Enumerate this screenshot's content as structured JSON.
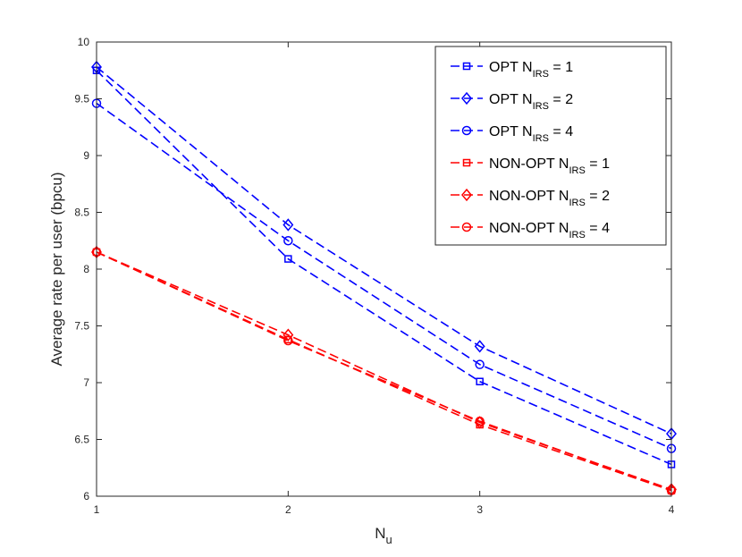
{
  "chart_data": {
    "type": "line",
    "xlabel": {
      "main": "N",
      "sub": "u"
    },
    "ylabel": "Average rate per user (bpcu)",
    "x": [
      1,
      2,
      3,
      4
    ],
    "xticks": [
      "1",
      "2",
      "3",
      "4"
    ],
    "yticks": [
      "6",
      "6.5",
      "7",
      "7.5",
      "8",
      "8.5",
      "9",
      "9.5",
      "10"
    ],
    "xlim": [
      1,
      4
    ],
    "ylim": [
      6,
      10
    ],
    "grid": false,
    "legend_position": "top-right",
    "series": [
      {
        "name": "OPT N_IRS = 1",
        "legend": {
          "prefix": "OPT N",
          "sub": "IRS",
          "suffix": " = 1"
        },
        "color": "#0000ff",
        "marker": "square",
        "values": [
          9.75,
          8.09,
          7.01,
          6.28
        ]
      },
      {
        "name": "OPT N_IRS = 2",
        "legend": {
          "prefix": "OPT N",
          "sub": "IRS",
          "suffix": " = 2"
        },
        "color": "#0000ff",
        "marker": "diamond",
        "values": [
          9.78,
          8.39,
          7.32,
          6.55
        ]
      },
      {
        "name": "OPT N_IRS = 4",
        "legend": {
          "prefix": "OPT N",
          "sub": "IRS",
          "suffix": " = 4"
        },
        "color": "#0000ff",
        "marker": "circle",
        "values": [
          9.46,
          8.25,
          7.16,
          6.42
        ]
      },
      {
        "name": "NON-OPT N_IRS = 1",
        "legend": {
          "prefix": "NON-OPT N",
          "sub": "IRS",
          "suffix": " = 1"
        },
        "color": "#ff0000",
        "marker": "square",
        "values": [
          8.15,
          7.38,
          6.63,
          6.05
        ]
      },
      {
        "name": "NON-OPT N_IRS = 2",
        "legend": {
          "prefix": "NON-OPT N",
          "sub": "IRS",
          "suffix": " = 2"
        },
        "color": "#ff0000",
        "marker": "diamond",
        "values": [
          8.15,
          7.42,
          6.65,
          6.06
        ]
      },
      {
        "name": "NON-OPT N_IRS = 4",
        "legend": {
          "prefix": "NON-OPT N",
          "sub": "IRS",
          "suffix": " = 4"
        },
        "color": "#ff0000",
        "marker": "circle",
        "values": [
          8.15,
          7.37,
          6.66,
          6.05
        ]
      }
    ]
  }
}
